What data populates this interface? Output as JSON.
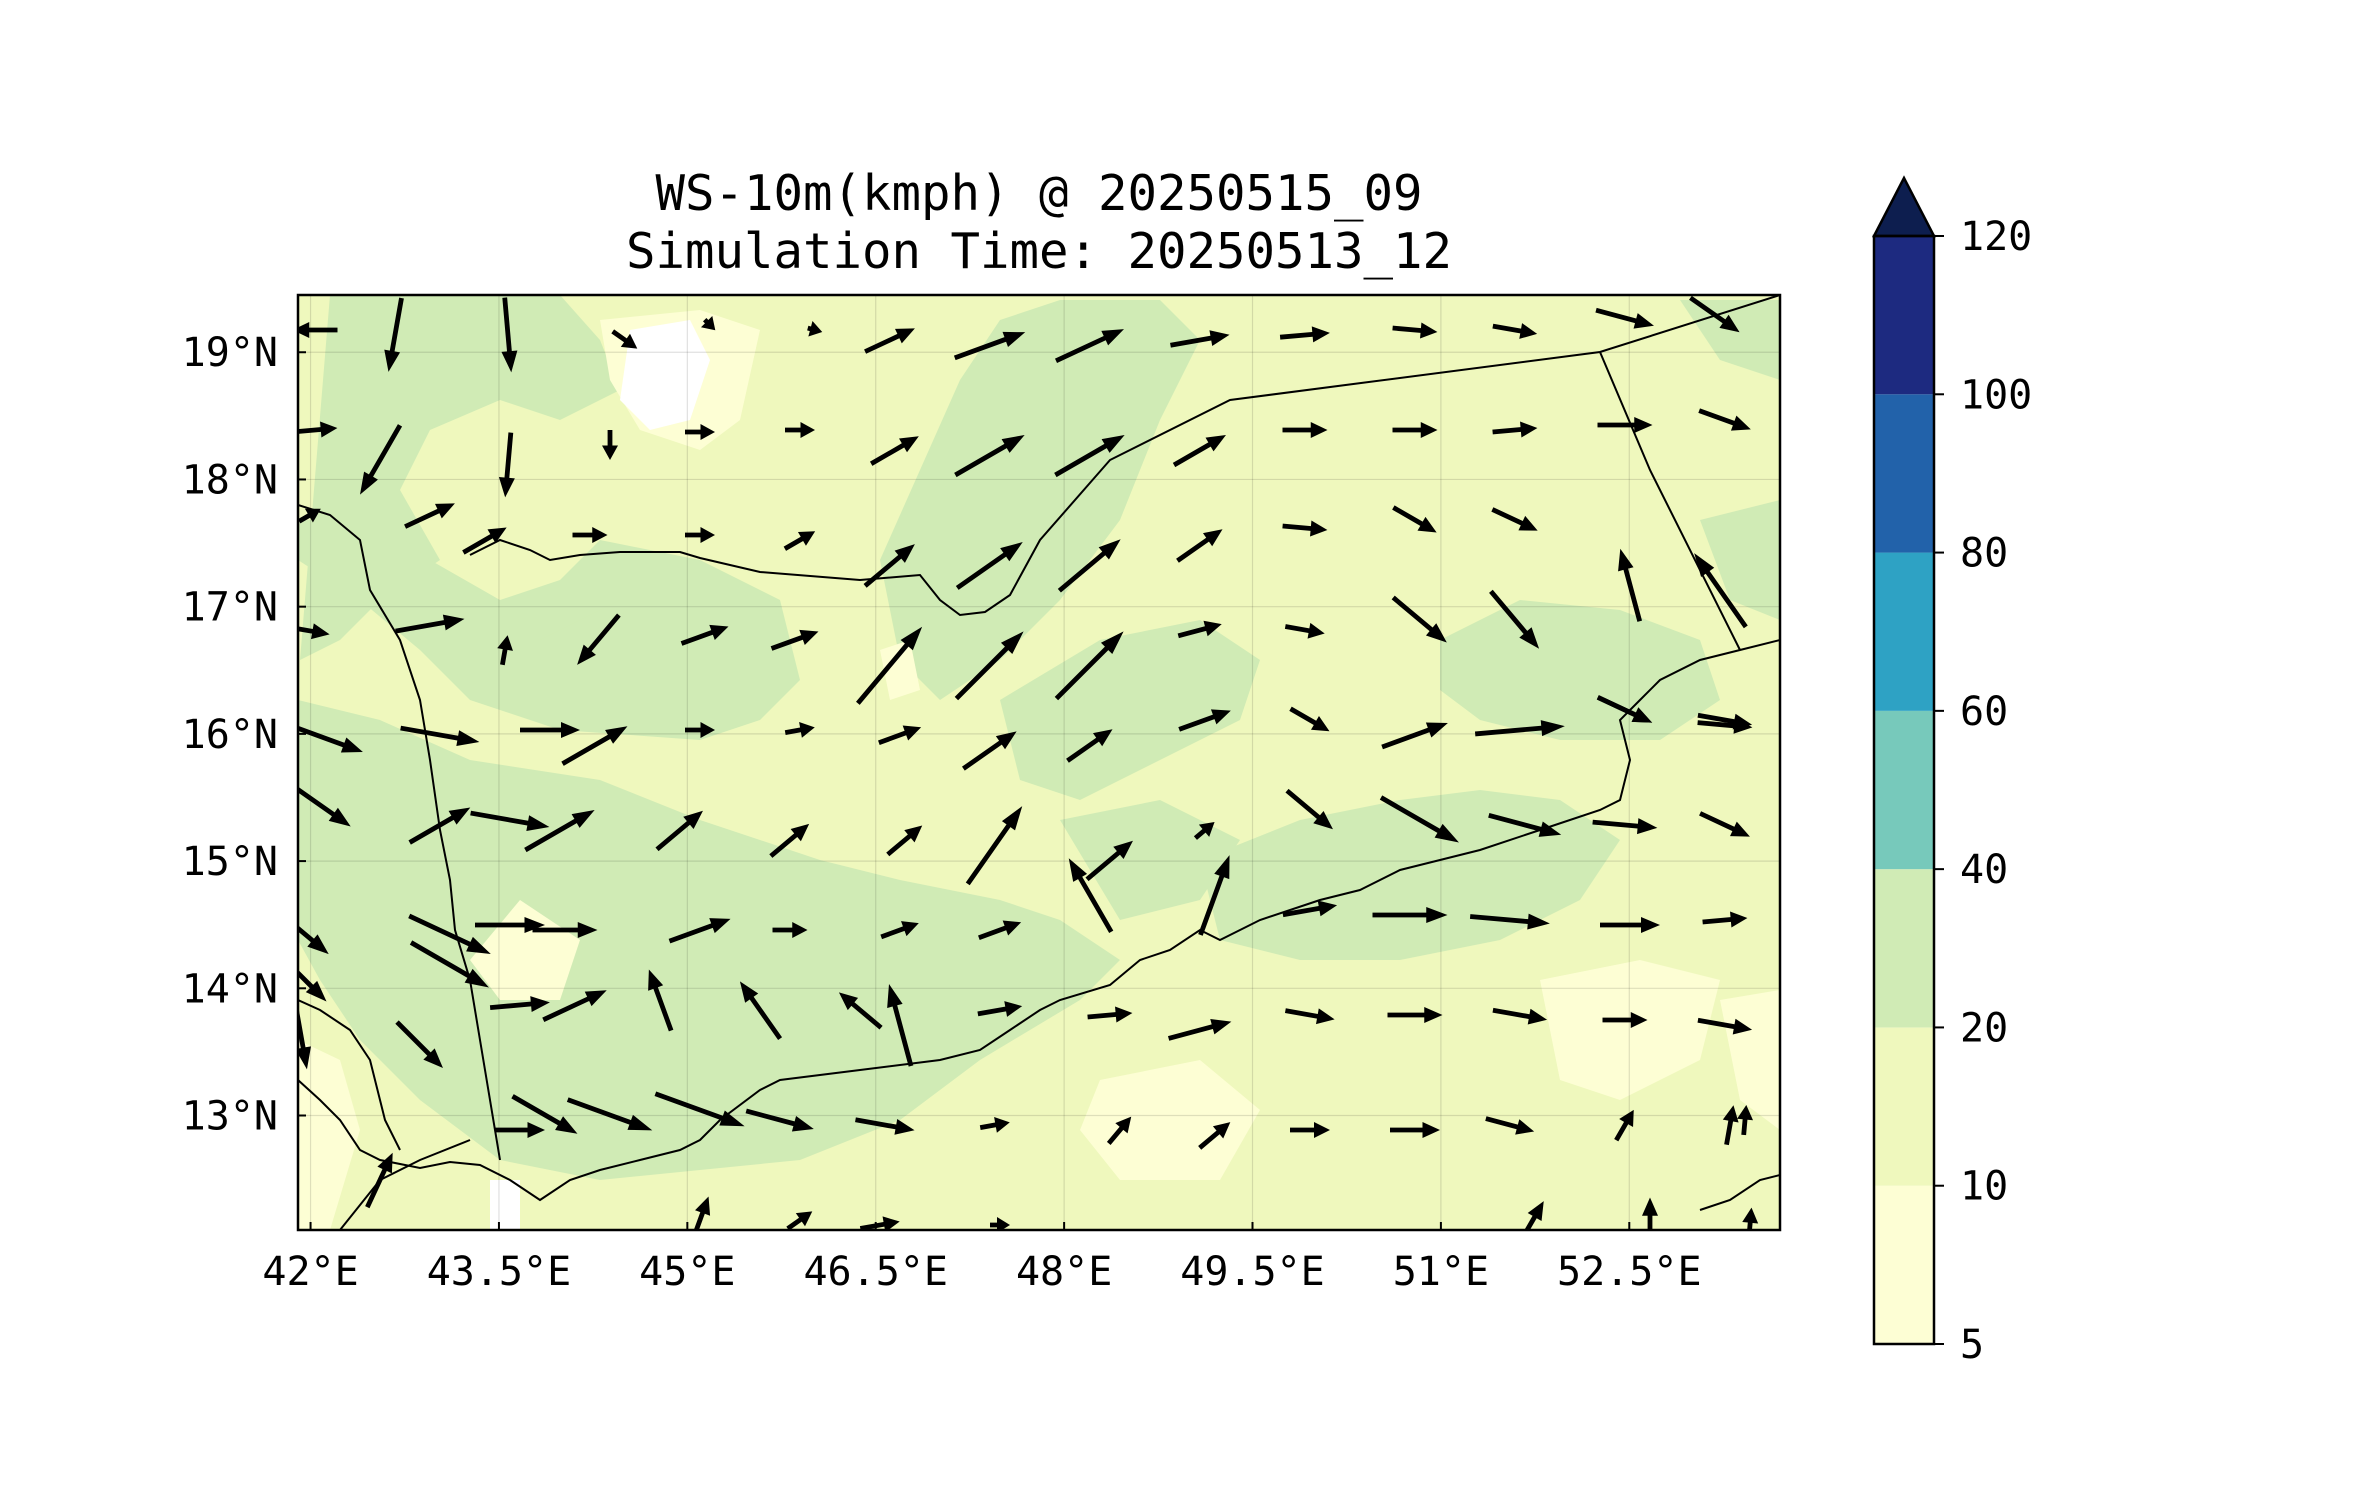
{
  "map": {
    "title_line1": "WS-10m(kmph) @ 20250515_09",
    "title_line2": "Simulation Time: 20250513_12",
    "lon_labels": [
      "42°E",
      "43.5°E",
      "45°E",
      "46.5°E",
      "48°E",
      "49.5°E",
      "51°E",
      "52.5°E"
    ],
    "lat_labels": [
      "19°N",
      "18°N",
      "17°N",
      "16°N",
      "15°N",
      "14°N",
      "13°N"
    ],
    "lon_ticks": [
      42,
      43.5,
      45,
      46.5,
      48,
      49.5,
      51,
      52.5
    ],
    "lat_ticks": [
      19,
      18,
      17,
      16,
      15,
      14,
      13
    ],
    "extent": {
      "lon_min": 41.9,
      "lon_max": 53.7,
      "lat_min": 12.1,
      "lat_max": 19.45
    },
    "vector_field": "10 m wind direction arrows over Yemen region"
  },
  "colorbar": {
    "labels": [
      "5",
      "10",
      "20",
      "40",
      "60",
      "80",
      "100",
      "120"
    ],
    "levels": [
      5,
      10,
      20,
      40,
      60,
      80,
      100,
      120
    ],
    "colors": [
      "#fdfed4",
      "#eff8bd",
      "#d0ebb5",
      "#77c9bb",
      "#2ea2c4",
      "#2262aa",
      "#1d2a80"
    ],
    "extend_color": "#0d1e4f",
    "extend": "max"
  }
}
